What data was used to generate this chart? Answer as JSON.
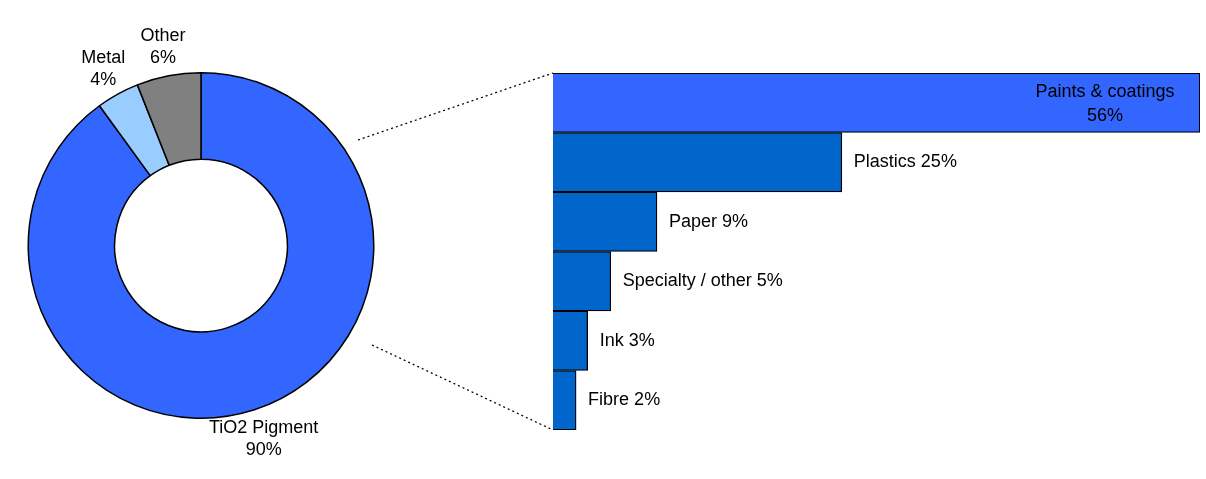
{
  "chart_data": [
    {
      "type": "donut",
      "categories": [
        "TiO2 Pigment",
        "Metal",
        "Other"
      ],
      "values": [
        90,
        4,
        6
      ],
      "colors": [
        "#3366ff",
        "#99ccff",
        "#808080"
      ],
      "value_labels": [
        "90%",
        "4%",
        "6%"
      ],
      "legend": false
    },
    {
      "type": "bar",
      "orientation": "horizontal",
      "categories": [
        "Paints & coatings",
        "Plastics",
        "Paper",
        "Specialty / other",
        "Ink",
        "Fibre"
      ],
      "values": [
        56,
        25,
        9,
        5,
        3,
        2
      ],
      "colors": [
        "#3366ff",
        "#0066cc",
        "#0066cc",
        "#0066cc",
        "#0066cc",
        "#0066cc"
      ],
      "value_labels": [
        "56%",
        "25%",
        "9%",
        "5%",
        "3%",
        "2%"
      ],
      "legend": false
    }
  ]
}
